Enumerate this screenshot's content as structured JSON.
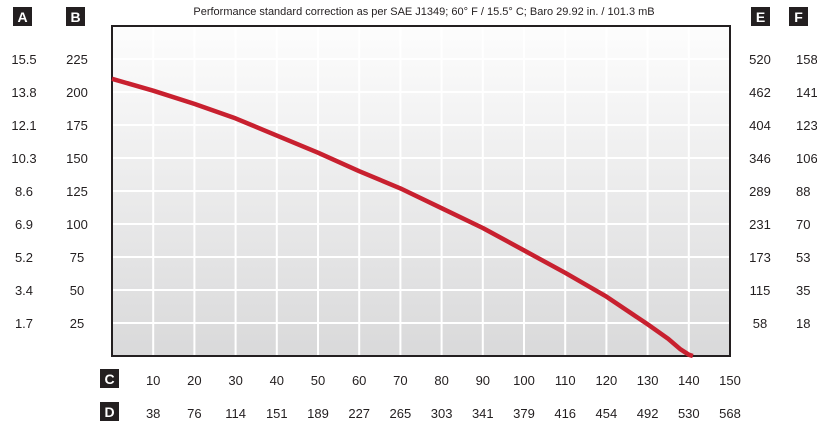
{
  "chart_data": {
    "type": "line",
    "title": "Performance standard correction as per SAE J1349;  60° F / 15.5° C;  Baro 29.92 in. / 101.3 mB",
    "axis_badges": {
      "left_outer": "A",
      "left_inner": "B",
      "right_inner": "E",
      "right_outer": "F",
      "bottom_inner": "C",
      "bottom_outer": "D"
    },
    "y_ticks_A": [
      "15.5",
      "13.8",
      "12.1",
      "10.3",
      "8.6",
      "6.9",
      "5.2",
      "3.4",
      "1.7"
    ],
    "y_ticks_B": [
      "225",
      "200",
      "175",
      "150",
      "125",
      "100",
      "75",
      "50",
      "25"
    ],
    "y_ticks_E": [
      "520",
      "462",
      "404",
      "346",
      "289",
      "231",
      "173",
      "115",
      "58"
    ],
    "y_ticks_F": [
      "158",
      "141",
      "123",
      "106",
      "88",
      "70",
      "53",
      "35",
      "18"
    ],
    "x_ticks_C": [
      "10",
      "20",
      "30",
      "40",
      "50",
      "60",
      "70",
      "80",
      "90",
      "100",
      "110",
      "120",
      "130",
      "140",
      "150"
    ],
    "x_ticks_D": [
      "38",
      "76",
      "114",
      "151",
      "189",
      "227",
      "265",
      "303",
      "341",
      "379",
      "416",
      "454",
      "492",
      "530",
      "568"
    ],
    "xlim": [
      0,
      150
    ],
    "ylim": [
      0,
      250
    ],
    "grid": true,
    "series": [
      {
        "color": "#c8202f",
        "x": [
          0,
          10,
          20,
          30,
          40,
          50,
          60,
          70,
          80,
          90,
          100,
          110,
          120,
          130,
          135,
          138,
          140,
          141
        ],
        "y": [
          210,
          201,
          191,
          180,
          167,
          154,
          140,
          127,
          112,
          97,
          80,
          63,
          45,
          24,
          13,
          5,
          1,
          0
        ]
      }
    ],
    "colors": {
      "plot_top": "#fdfdfd",
      "plot_bottom": "#d9d9da",
      "grid": "#ffffff",
      "frame": "#231f20",
      "badge": "#231f20"
    }
  }
}
